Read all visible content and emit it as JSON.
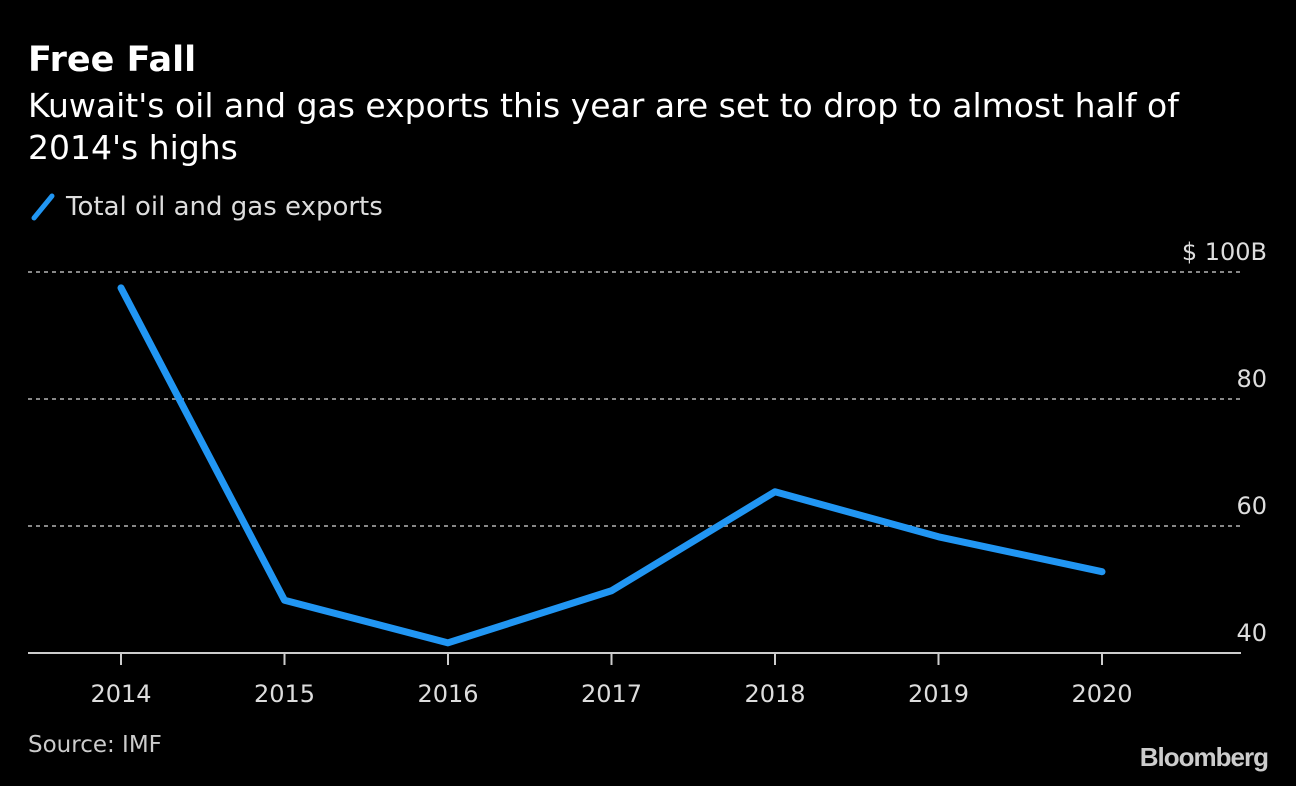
{
  "chart_data": {
    "type": "line",
    "title": "Free Fall",
    "subtitle": "Kuwait's oil and gas exports this year are set to drop to almost half of 2014's highs",
    "xlabel": "",
    "ylabel": "",
    "x": [
      "2014",
      "2015",
      "2016",
      "2017",
      "2018",
      "2019",
      "2020"
    ],
    "series": [
      {
        "name": "Total oil and gas exports",
        "color": "#2196f3",
        "values": [
          97.5,
          48.3,
          41.6,
          49.8,
          65.4,
          58.3,
          52.8
        ]
      }
    ],
    "ylim": [
      40,
      100
    ],
    "yticks": [
      {
        "value": 100,
        "label": "$ 100B"
      },
      {
        "value": 80,
        "label": "80"
      },
      {
        "value": 60,
        "label": "60"
      },
      {
        "value": 40,
        "label": "40"
      }
    ],
    "grid": true,
    "legend_position": "top-left",
    "source": "Source: IMF",
    "brand": "Bloomberg"
  }
}
